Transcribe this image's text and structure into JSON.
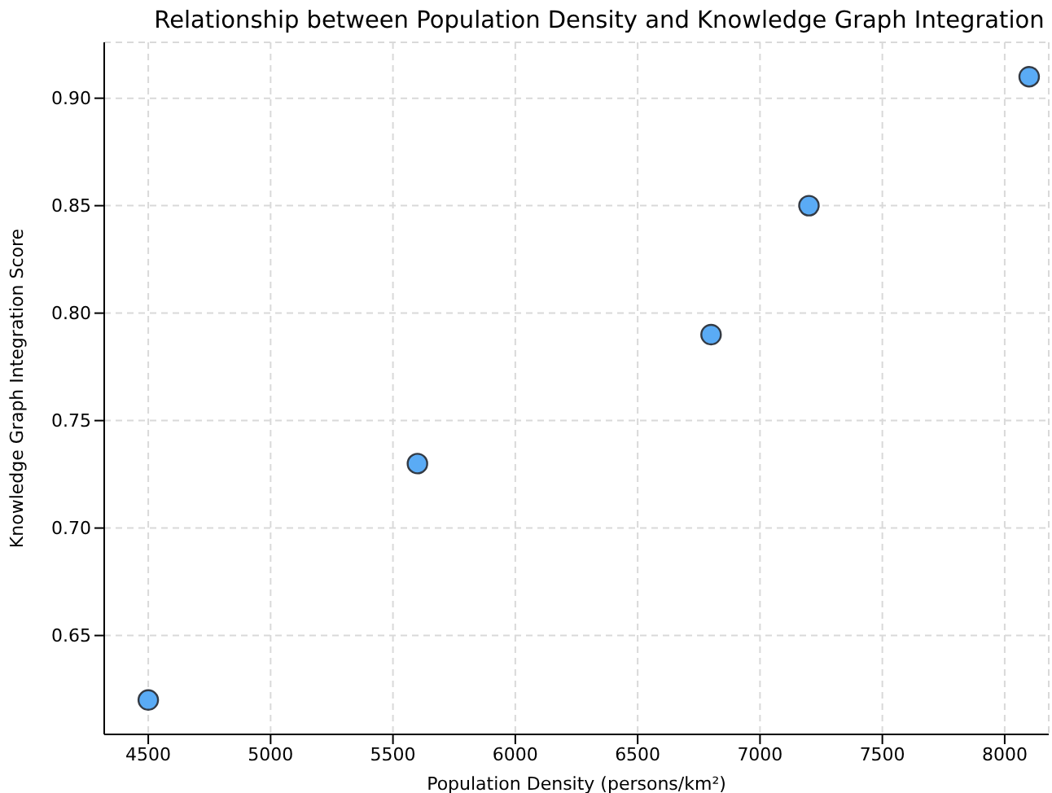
{
  "chart_data": {
    "type": "scatter",
    "title": "Relationship between Population Density and Knowledge Graph Integration",
    "xlabel": "Population Density (persons/km²)",
    "ylabel": "Knowledge Graph Integration Score",
    "x": [
      4500,
      5600,
      6800,
      7200,
      8100
    ],
    "series": [
      {
        "color": "#5aabf5",
        "values": [
          0.62,
          0.73,
          0.79,
          0.85,
          0.91
        ]
      }
    ],
    "xlim": [
      4320,
      8180
    ],
    "xticks": [
      4500,
      5000,
      5500,
      6000,
      6500,
      7000,
      7500,
      8000
    ],
    "ylim": [
      0.604,
      0.926
    ],
    "yticks": [
      {
        "value": 0.65,
        "label": "0.65"
      },
      {
        "value": 0.7,
        "label": "0.70"
      },
      {
        "value": 0.75,
        "label": "0.75"
      },
      {
        "value": 0.8,
        "label": "0.80"
      },
      {
        "value": 0.85,
        "label": "0.85"
      },
      {
        "value": 0.9,
        "label": "0.90"
      }
    ],
    "grid": true,
    "marker": "circle"
  }
}
